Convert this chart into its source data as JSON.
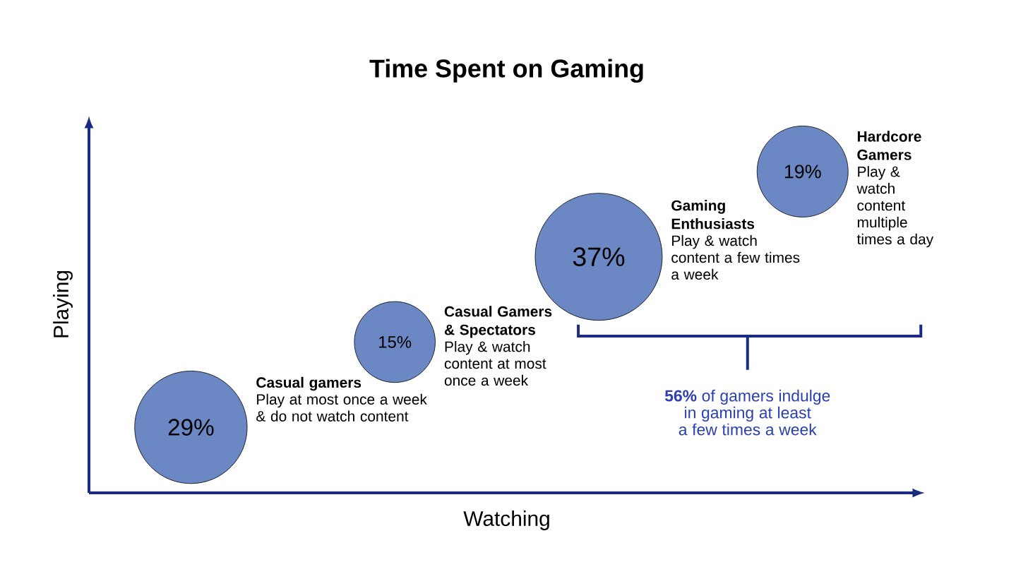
{
  "chart_data": {
    "type": "other",
    "title": "Time Spent on Gaming",
    "xlabel": "Watching",
    "ylabel": "Playing",
    "categories": [
      "Casual gamers",
      "Casual Gamers & Spectators",
      "Gaming Enthusiasts",
      "Hardcore Gamers"
    ],
    "values": [
      29,
      15,
      37,
      19
    ],
    "color": "#6b88c4",
    "value_labels": [
      "29%",
      "15%",
      "37%",
      "19%"
    ],
    "annotations": [
      "Play at most once a week & do not watch content",
      "Play & watch content at most once a week",
      "Play & watch content a few times a week",
      "Play & watch content multiple times a day",
      "**56%** of gamers indulge in gaming at least a few times a week"
    ]
  }
}
